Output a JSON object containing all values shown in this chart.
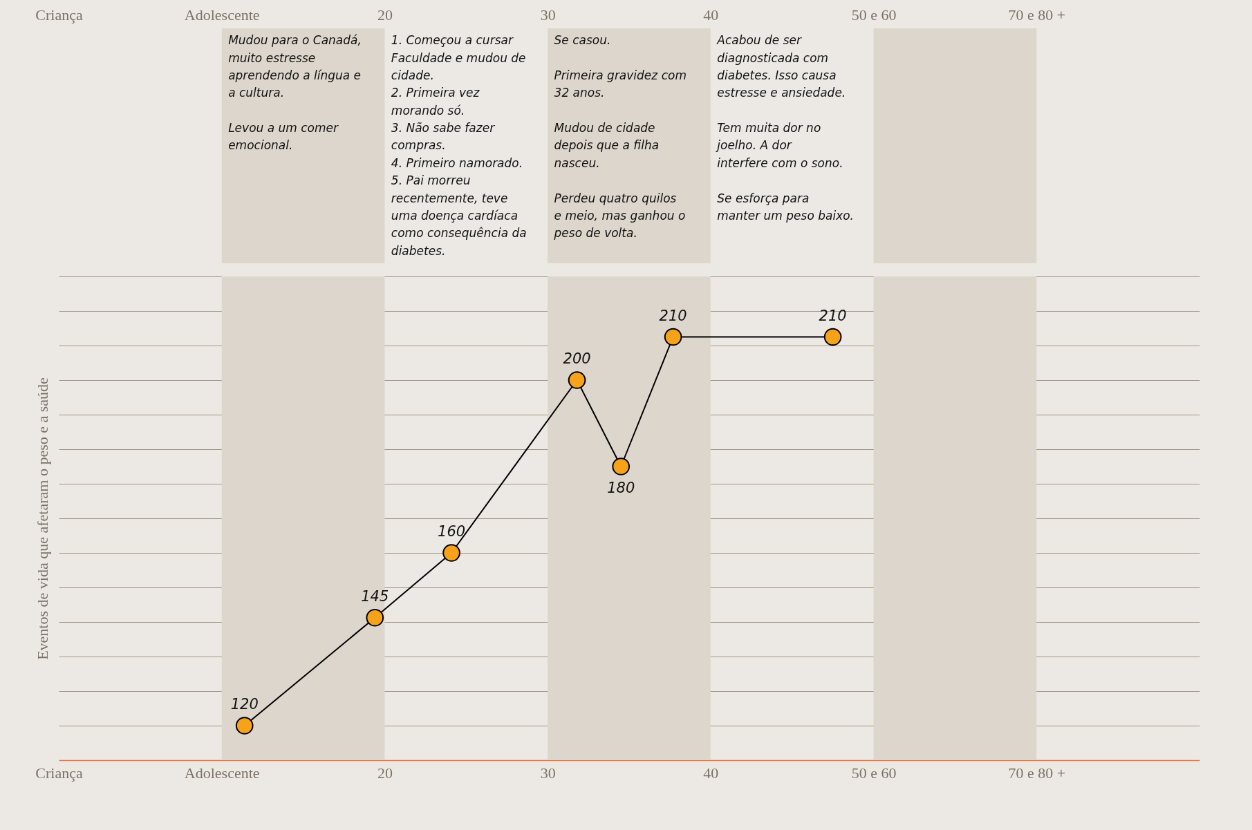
{
  "chart_data": {
    "type": "line",
    "ylabel": "Eventos de vida que afetaram o peso e a saúde",
    "x": [
      11.4,
      19.4,
      24.1,
      31.8,
      34.5,
      37.7,
      47.5
    ],
    "series": [
      {
        "color": "#f7a21b",
        "values": [
          120,
          145,
          160,
          200,
          180,
          210,
          210
        ]
      }
    ],
    "data_labels": true,
    "marker": "circle",
    "line_style": "solid",
    "grid": "y",
    "xlim": [
      0,
      70
    ],
    "xticks": [
      {
        "value": 0,
        "label": "Criança"
      },
      {
        "value": 10,
        "label": "Adolescente"
      },
      20,
      30,
      40,
      {
        "value": 50,
        "label": "50 e 60"
      },
      {
        "value": 60,
        "label": "70 e 80 +"
      }
    ],
    "x2lim": [
      0,
      70
    ],
    "x2ticks": [
      {
        "value": 0,
        "label": "Criança"
      },
      {
        "value": 10,
        "label": "Adolescente"
      },
      20,
      30,
      40,
      {
        "value": 50,
        "label": "50 e 60"
      },
      {
        "value": 60,
        "label": "70 e 80 +"
      }
    ],
    "ylim": [
      112,
      224
    ],
    "yticks": [
      {
        "value": 120,
        "label": null
      },
      {
        "value": 128,
        "label": null
      },
      {
        "value": 136,
        "label": null
      },
      {
        "value": 144,
        "label": null
      },
      {
        "value": 152,
        "label": null
      },
      {
        "value": 160,
        "label": null
      },
      {
        "value": 168,
        "label": null
      },
      {
        "value": 176,
        "label": null
      },
      {
        "value": 184,
        "label": null
      },
      {
        "value": 192,
        "label": null
      },
      {
        "value": 200,
        "label": null
      },
      {
        "value": 208,
        "label": null
      },
      {
        "value": 216,
        "label": null
      },
      {
        "value": 224,
        "label": null
      }
    ],
    "bands": [
      {
        "axis": "x",
        "from": 10,
        "to": 20,
        "color": "#ddd6cc"
      },
      {
        "axis": "x",
        "from": 30,
        "to": 40,
        "color": "#ddd6cc"
      },
      {
        "axis": "x",
        "from": 50,
        "to": 60,
        "color": "#ddd6cc"
      }
    ],
    "annotations": [
      "Mudou para o Canadá, muito estresse aprendendo a língua e a cultura.\n\nLevou a um comer emocional.",
      "1. Começou a cursar Faculdade e mudou de cidade.\n2. Primeira vez morando só.\n3. Não sabe fazer compras.\n4. Primeiro namorado.\n5. Pai morreu recentemente, teve uma doença cardíaca como consequência da diabetes.",
      "Se casou.\n\nPrimeira gravidez com 32 anos.\n\nMudou de cidade depois que a filha nasceu.\n\nPerdeu quatro quilos e meio, mas ganhou o peso de volta.",
      "Acabou de ser diagnosticada com diabetes. Isso causa estresse e ansiedade.\n\nTem muita dor no joelho. A dor interfere com o sono.\n\nSe esforça para manter um peso baixo."
    ]
  }
}
